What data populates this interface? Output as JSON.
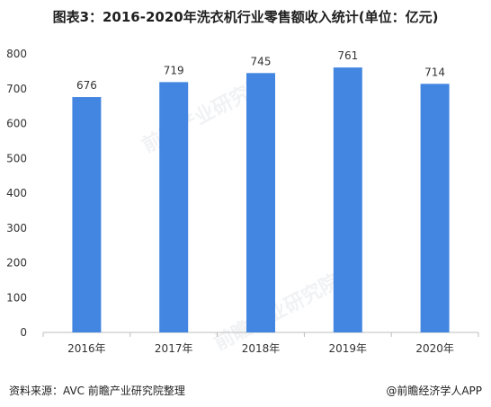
{
  "title": "图表3：2016-2020年洗衣机行业零售额收入统计(单位：亿元)",
  "footer": {
    "source": "资料来源：AVC 前瞻产业研究院整理",
    "brand": "@前瞻经济学人APP"
  },
  "watermark": "前瞻产业研究院",
  "colors": {
    "bar": "#4286e1",
    "axis": "#bdbdbd",
    "text": "#333333"
  },
  "chart_data": {
    "type": "bar",
    "title": "图表3：2016-2020年洗衣机行业零售额收入统计(单位：亿元)",
    "categories": [
      "2016年",
      "2017年",
      "2018年",
      "2019年",
      "2020年"
    ],
    "values": [
      676,
      719,
      745,
      761,
      714
    ],
    "data_labels": [
      "676",
      "719",
      "745",
      "761",
      "714"
    ],
    "yticks": [
      "0",
      "100",
      "200",
      "300",
      "400",
      "500",
      "600",
      "700",
      "800"
    ],
    "ylim": [
      0,
      800
    ],
    "grid": false,
    "legend": "none"
  }
}
